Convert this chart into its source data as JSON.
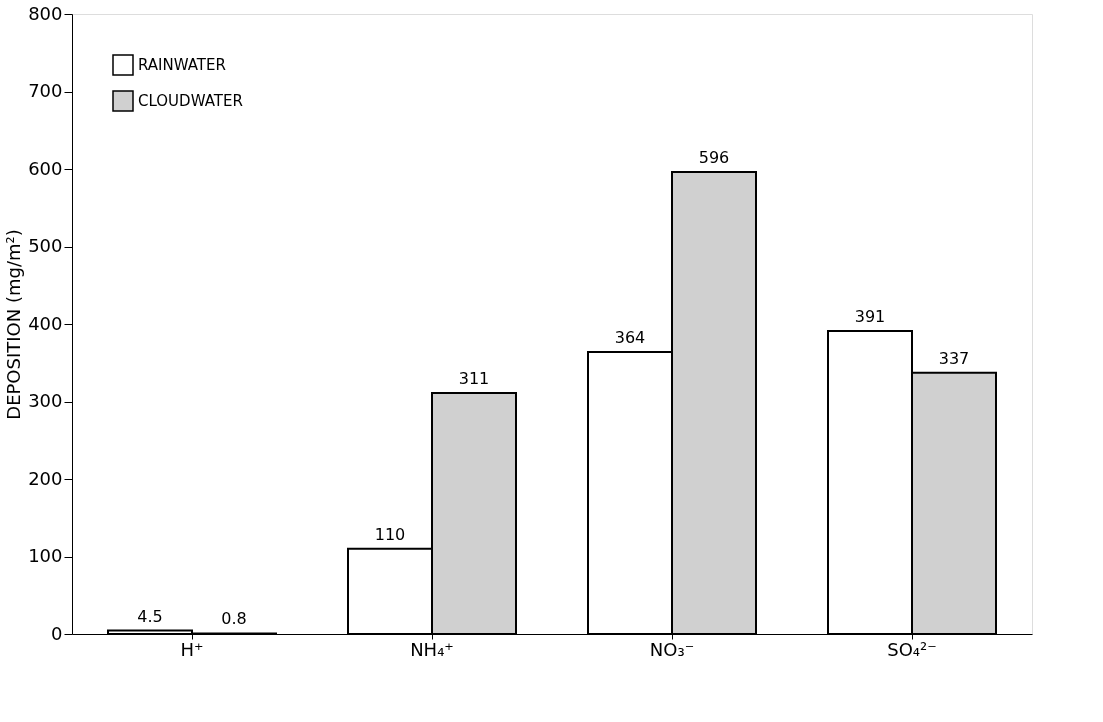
{
  "chart_data": {
    "type": "bar",
    "ylabel": "DEPOSITION (mg/m²)",
    "categories": [
      "H⁺",
      "NH₄⁺",
      "NO₃⁻",
      "SO₄²⁻"
    ],
    "series": [
      {
        "name": "RAINWATER",
        "color": "#ffffff",
        "values": [
          4.5,
          110,
          364,
          391
        ]
      },
      {
        "name": "CLOUDWATER",
        "color": "#d0d0d0",
        "values": [
          0.8,
          311,
          596,
          337
        ]
      }
    ],
    "ylim": [
      0,
      800
    ],
    "yticks": [
      0,
      100,
      200,
      300,
      400,
      500,
      600,
      700,
      800
    ],
    "data_labels": true,
    "grid": false,
    "legend": "top left"
  }
}
